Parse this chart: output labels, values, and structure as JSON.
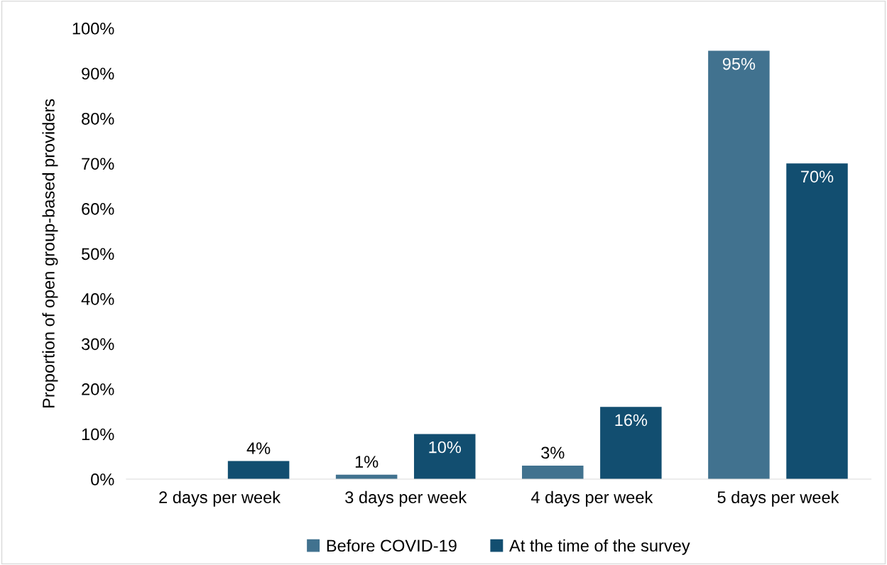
{
  "chart_data": {
    "type": "bar",
    "ylabel": "Proportion of open group-based providers",
    "categories": [
      "2 days per week",
      "3 days per week",
      "4 days per week",
      "5 days per week"
    ],
    "series": [
      {
        "name": "Before COVID-19",
        "color": "#41728f",
        "values": [
          null,
          1,
          3,
          95
        ],
        "value_labels": [
          null,
          "1%",
          "3%",
          "95%"
        ]
      },
      {
        "name": "At the time of the survey",
        "color": "#124e70",
        "values": [
          4,
          10,
          16,
          70
        ],
        "value_labels": [
          "4%",
          "10%",
          "16%",
          "70%"
        ]
      }
    ],
    "ylim": [
      0,
      100
    ],
    "yticks": [
      {
        "value": 0,
        "label": "0%"
      },
      {
        "value": 10,
        "label": "10%"
      },
      {
        "value": 20,
        "label": "20%"
      },
      {
        "value": 30,
        "label": "30%"
      },
      {
        "value": 40,
        "label": "40%"
      },
      {
        "value": 50,
        "label": "50%"
      },
      {
        "value": 60,
        "label": "60%"
      },
      {
        "value": 70,
        "label": "70%"
      },
      {
        "value": 80,
        "label": "80%"
      },
      {
        "value": 90,
        "label": "90%"
      },
      {
        "value": 100,
        "label": "100%"
      }
    ],
    "grid": false,
    "legend": "bottom"
  }
}
